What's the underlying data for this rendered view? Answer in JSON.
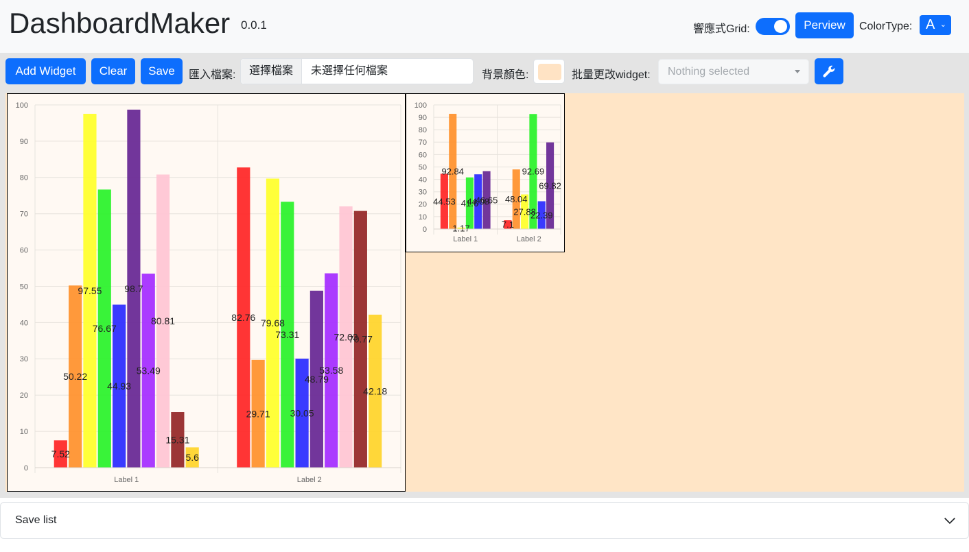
{
  "header": {
    "brand": "DashboardMaker",
    "version": "0.0.1",
    "grid_label": "響應式Grid:",
    "grid_toggle_on": true,
    "preview_label": "Perview",
    "colortype_label": "ColorType:",
    "colortype_value": "A"
  },
  "toolbar": {
    "add_widget": "Add Widget",
    "clear": "Clear",
    "save": "Save",
    "import_label": "匯入檔案:",
    "file_button": "選擇檔案",
    "file_name": "未選擇任何檔案",
    "bg_color_label": "背景顏色:",
    "bg_color": "#ffe3c4",
    "batch_label": "批量更改widget:",
    "batch_placeholder": "Nothing selected",
    "wrench_icon": "wrench-icon"
  },
  "canvas": {
    "background": "#ffe5c6"
  },
  "chart_data": [
    {
      "type": "bar",
      "categories": [
        "Label 1",
        "Label 2"
      ],
      "ylim": [
        0,
        100
      ],
      "yticks": [
        0,
        10,
        20,
        30,
        40,
        50,
        60,
        70,
        80,
        90,
        100
      ],
      "grid": true,
      "series": [
        {
          "color": "#ff2a2a",
          "values": [
            7.52,
            82.76
          ]
        },
        {
          "color": "#ff9330",
          "values": [
            50.22,
            29.71
          ]
        },
        {
          "color": "#ffff2e",
          "values": [
            97.55,
            79.68
          ]
        },
        {
          "color": "#2ef22e",
          "values": [
            76.67,
            73.31
          ]
        },
        {
          "color": "#2f2fff",
          "values": [
            44.93,
            30.05
          ]
        },
        {
          "color": "#6a2b96",
          "values": [
            98.7,
            48.79
          ]
        },
        {
          "color": "#a630ff",
          "values": [
            53.49,
            53.58
          ]
        },
        {
          "color": "#ffc6d4",
          "values": [
            80.81,
            72.03
          ]
        },
        {
          "color": "#972b2b",
          "values": [
            15.31,
            70.77
          ]
        },
        {
          "color": "#ffd52e",
          "values": [
            5.6,
            42.18
          ]
        }
      ]
    },
    {
      "type": "bar",
      "categories": [
        "Label 1",
        "Label 2"
      ],
      "ylim": [
        0,
        100
      ],
      "yticks": [
        0,
        10,
        20,
        30,
        40,
        50,
        60,
        70,
        80,
        90,
        100
      ],
      "grid": true,
      "series": [
        {
          "color": "#ff2a2a",
          "values": [
            44.53,
            7.1
          ]
        },
        {
          "color": "#ff9330",
          "values": [
            92.84,
            48.04
          ]
        },
        {
          "color": "#ffff2e",
          "values": [
            1.17,
            27.88
          ]
        },
        {
          "color": "#2ef22e",
          "values": [
            41.6,
            92.69
          ]
        },
        {
          "color": "#2f2fff",
          "values": [
            44.08,
            22.39
          ]
        },
        {
          "color": "#6a2b96",
          "values": [
            46.65,
            69.82
          ]
        }
      ]
    }
  ],
  "savelist": {
    "label": "Save list"
  }
}
